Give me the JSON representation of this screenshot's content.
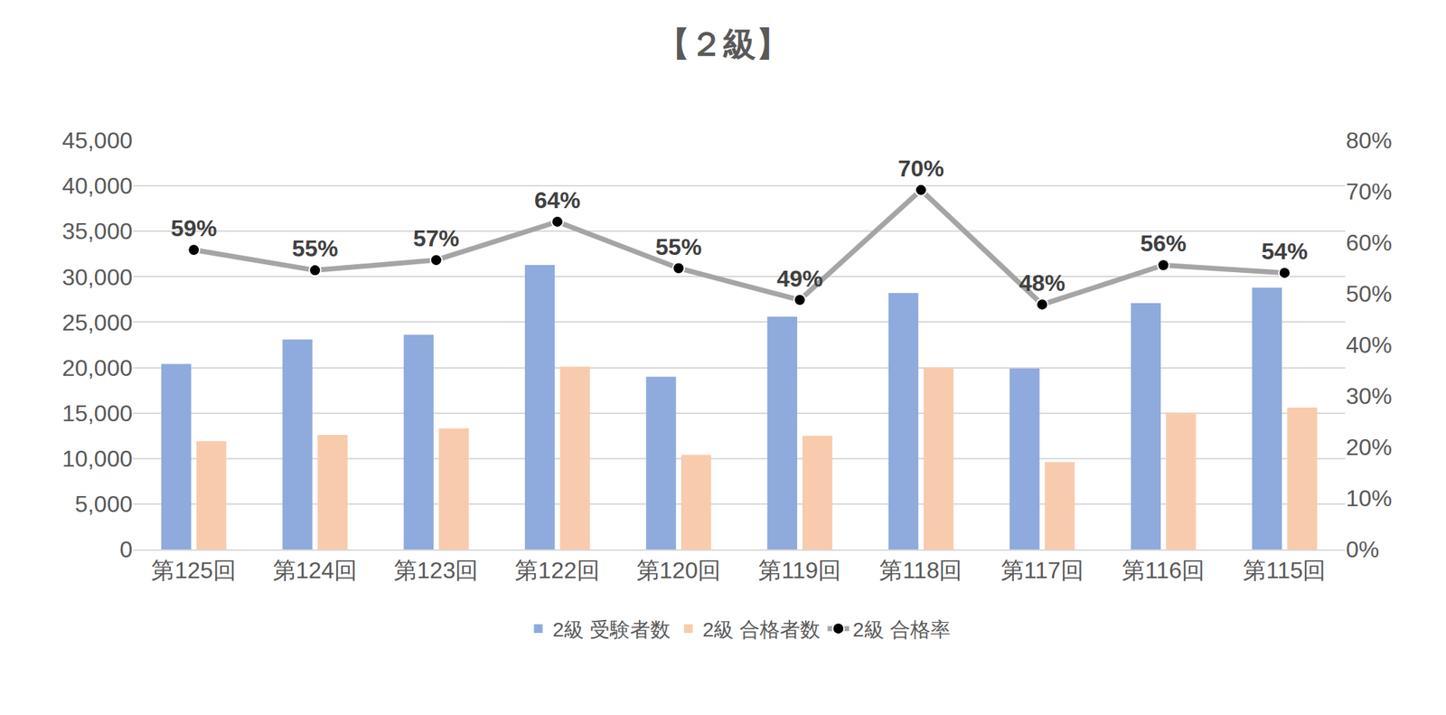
{
  "chart_data": {
    "type": "bar",
    "title": "【２級】",
    "categories": [
      "第125回",
      "第124回",
      "第123回",
      "第122回",
      "第120回",
      "第119回",
      "第118回",
      "第117回",
      "第116回",
      "第115回"
    ],
    "series": [
      {
        "name": "2級 受験者数",
        "type": "bar",
        "color": "#8faadc",
        "values": [
          20400,
          23100,
          23600,
          31300,
          19000,
          25600,
          28200,
          19900,
          27100,
          28800
        ]
      },
      {
        "name": "2級 合格者数",
        "type": "bar",
        "color": "#f8cbad",
        "values": [
          11900,
          12600,
          13300,
          20100,
          10400,
          12500,
          20000,
          9600,
          15000,
          15600
        ]
      },
      {
        "name": "2級 合格率",
        "type": "line",
        "axis": "y2",
        "color": "#a5a5a5",
        "marker": "circle",
        "line_style": "solid",
        "data_labels": true,
        "values": [
          58.6,
          54.6,
          56.6,
          64.1,
          55.0,
          48.8,
          70.3,
          47.9,
          55.6,
          54.1
        ],
        "value_labels": [
          "59%",
          "55%",
          "57%",
          "64%",
          "55%",
          "49%",
          "70%",
          "48%",
          "56%",
          "54%"
        ]
      }
    ],
    "ylim": [
      0,
      45000
    ],
    "yticks": [
      0,
      {
        "value": 5000,
        "label": "5,000"
      },
      {
        "value": 10000,
        "label": "10,000"
      },
      {
        "value": 15000,
        "label": "15,000"
      },
      {
        "value": 20000,
        "label": "20,000"
      },
      {
        "value": 25000,
        "label": "25,000"
      },
      {
        "value": 30000,
        "label": "30,000"
      },
      {
        "value": 35000,
        "label": "35,000"
      },
      {
        "value": 40000,
        "label": "40,000"
      },
      {
        "value": 45000,
        "label": "45,000"
      }
    ],
    "y2lim": [
      0,
      80
    ],
    "y2ticks": [
      {
        "value": 0,
        "label": "0%"
      },
      {
        "value": 10,
        "label": "10%"
      },
      {
        "value": 20,
        "label": "20%"
      },
      {
        "value": 30,
        "label": "30%"
      },
      {
        "value": 40,
        "label": "40%"
      },
      {
        "value": 50,
        "label": "50%"
      },
      {
        "value": 60,
        "label": "60%"
      },
      {
        "value": 70,
        "label": "70%"
      },
      {
        "value": 80,
        "label": "80%"
      }
    ],
    "grid": true,
    "legend": "bottom"
  }
}
